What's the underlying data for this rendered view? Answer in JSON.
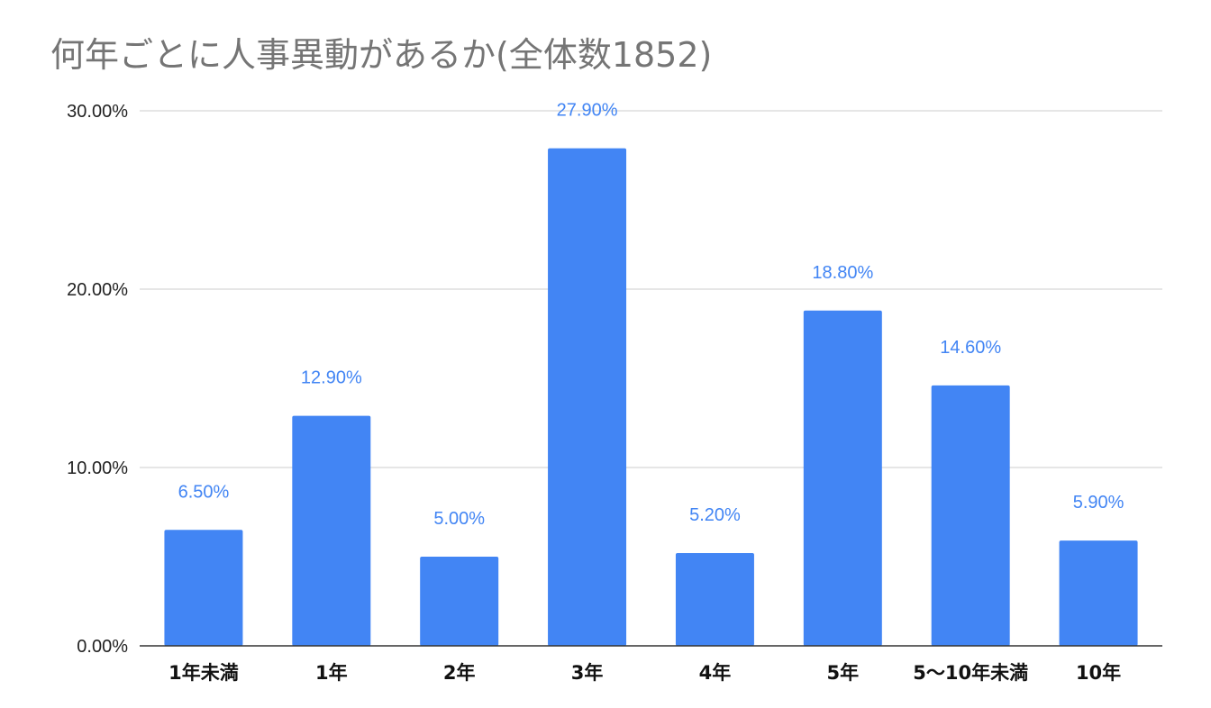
{
  "title": "何年ごとに人事異動があるか(全体数1852)",
  "colors": {
    "bar": "#4285f4",
    "label": "#4285f4",
    "grid": "#cccccc",
    "axis": "#333333"
  },
  "chart_data": {
    "type": "bar",
    "title": "何年ごとに人事異動があるか(全体数1852)",
    "xlabel": "",
    "ylabel": "",
    "categories": [
      "1年未満",
      "1年",
      "2年",
      "3年",
      "4年",
      "5年",
      "5〜10年未満",
      "10年"
    ],
    "values": [
      6.5,
      12.9,
      5.0,
      27.9,
      5.2,
      18.8,
      14.6,
      5.9
    ],
    "data_labels": [
      "6.50%",
      "12.90%",
      "5.00%",
      "27.90%",
      "5.20%",
      "18.80%",
      "14.60%",
      "5.90%"
    ],
    "ylim": [
      0,
      30
    ],
    "yticks": [
      0,
      10,
      20,
      30
    ],
    "ytick_labels": [
      "0.00%",
      "10.00%",
      "20.00%",
      "30.00%"
    ],
    "grid": true,
    "legend": "none"
  }
}
